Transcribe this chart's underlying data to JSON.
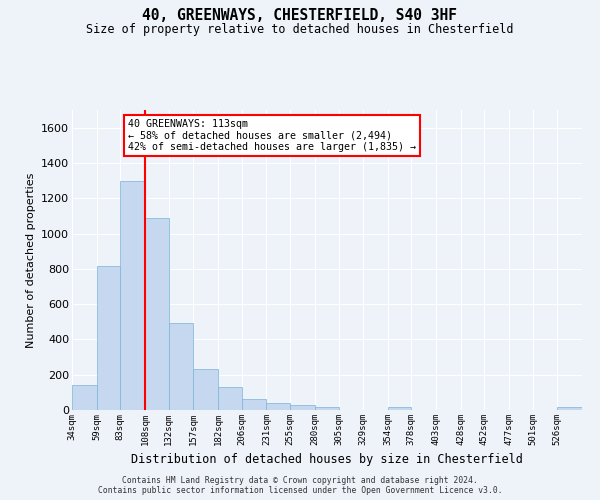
{
  "title": "40, GREENWAYS, CHESTERFIELD, S40 3HF",
  "subtitle": "Size of property relative to detached houses in Chesterfield",
  "xlabel": "Distribution of detached houses by size in Chesterfield",
  "ylabel": "Number of detached properties",
  "bar_color": "#c5d8f0",
  "bar_edgecolor": "#7ab4d8",
  "vline_color": "red",
  "vline_x": 108,
  "categories": [
    "34sqm",
    "59sqm",
    "83sqm",
    "108sqm",
    "132sqm",
    "157sqm",
    "182sqm",
    "206sqm",
    "231sqm",
    "255sqm",
    "280sqm",
    "305sqm",
    "329sqm",
    "354sqm",
    "378sqm",
    "403sqm",
    "428sqm",
    "452sqm",
    "477sqm",
    "501sqm",
    "526sqm"
  ],
  "bin_edges": [
    34,
    59,
    83,
    108,
    132,
    157,
    182,
    206,
    231,
    255,
    280,
    305,
    329,
    354,
    378,
    403,
    428,
    452,
    477,
    501,
    526,
    551
  ],
  "bar_heights": [
    140,
    815,
    1295,
    1090,
    495,
    235,
    130,
    65,
    40,
    28,
    15,
    0,
    0,
    15,
    0,
    0,
    0,
    0,
    0,
    0,
    15
  ],
  "ylim": [
    0,
    1700
  ],
  "yticks": [
    0,
    200,
    400,
    600,
    800,
    1000,
    1200,
    1400,
    1600
  ],
  "annotation_title": "40 GREENWAYS: 113sqm",
  "annotation_line1": "← 58% of detached houses are smaller (2,494)",
  "annotation_line2": "42% of semi-detached houses are larger (1,835) →",
  "footnote1": "Contains HM Land Registry data © Crown copyright and database right 2024.",
  "footnote2": "Contains public sector information licensed under the Open Government Licence v3.0.",
  "background_color": "#eef2f9",
  "grid_color": "#ffffff",
  "annotation_box_color": "#ffffff",
  "annotation_box_edgecolor": "red"
}
